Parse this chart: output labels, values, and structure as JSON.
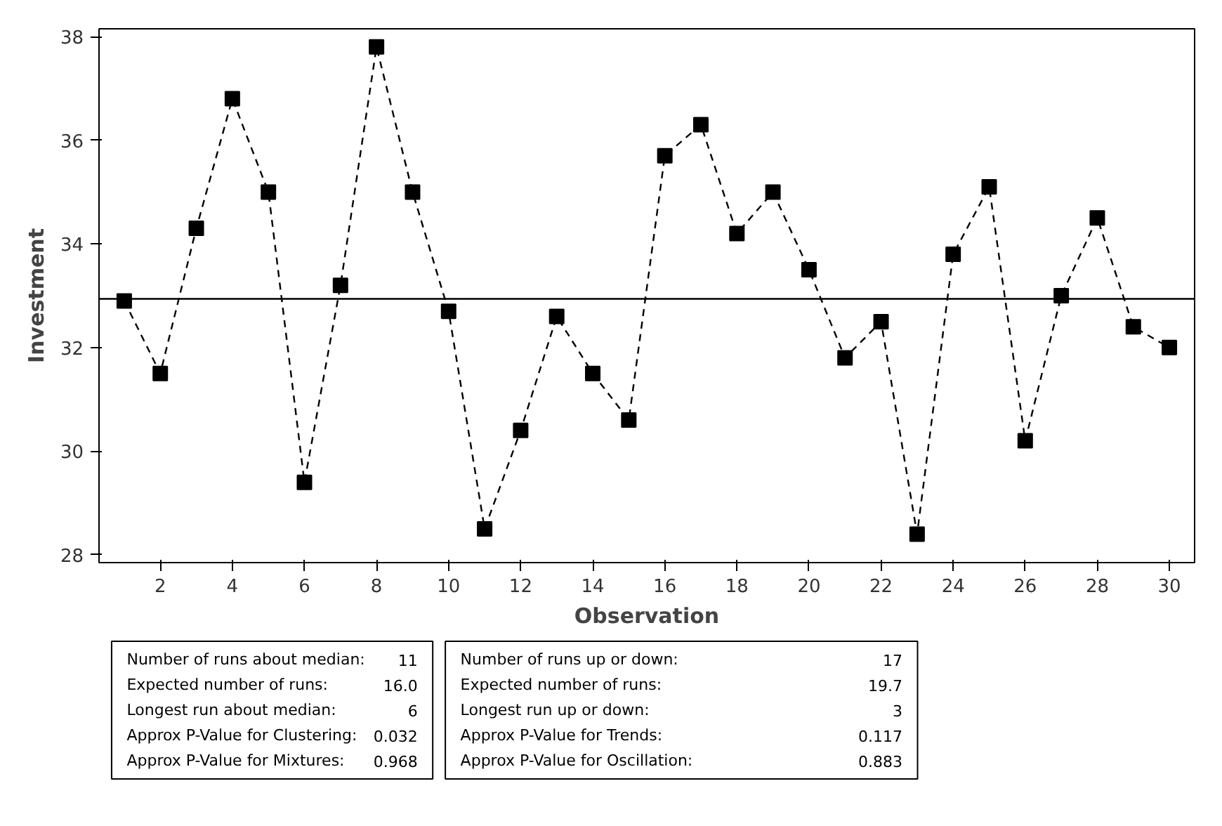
{
  "chart_data": {
    "type": "line",
    "xlabel": "Observation",
    "ylabel": "Investment",
    "x": [
      1,
      2,
      3,
      4,
      5,
      6,
      7,
      8,
      9,
      10,
      11,
      12,
      13,
      14,
      15,
      16,
      17,
      18,
      19,
      20,
      21,
      22,
      23,
      24,
      25,
      26,
      27,
      28,
      29,
      30
    ],
    "values": [
      32.9,
      31.5,
      34.3,
      36.8,
      35.0,
      29.4,
      33.2,
      37.8,
      35.0,
      32.7,
      28.5,
      30.4,
      32.6,
      31.5,
      30.6,
      35.7,
      36.3,
      34.2,
      35.0,
      33.5,
      31.8,
      32.5,
      28.4,
      33.8,
      35.1,
      30.2,
      33.0,
      34.5,
      32.4,
      32.0
    ],
    "color": "#000000",
    "marker": "square",
    "line_style": "dashed",
    "grid": false,
    "xlim": [
      0.3,
      30.7
    ],
    "ylim": [
      27.85,
      38.15
    ],
    "xticks": [
      2,
      4,
      6,
      8,
      10,
      12,
      14,
      16,
      18,
      20,
      22,
      24,
      26,
      28,
      30
    ],
    "yticks": [
      28,
      30,
      32,
      34,
      36,
      38
    ],
    "ref_lines": [
      {
        "axis": "y",
        "value": 32.94,
        "label": null,
        "color": "#000000",
        "line_style": "solid"
      }
    ],
    "annotations": [
      "Number of runs about median: 11",
      "Expected number of runs: 16.0",
      "Longest run about median: 6",
      "Approx P-Value for Clustering: 0.032",
      "Approx P-Value for Mixtures: 0.968",
      "Number of runs up or down: 17",
      "Expected number of runs: 19.7",
      "Longest run up or down: 3",
      "Approx P-Value for Trends: 0.117",
      "Approx P-Value for Oscillation: 0.883"
    ]
  }
}
